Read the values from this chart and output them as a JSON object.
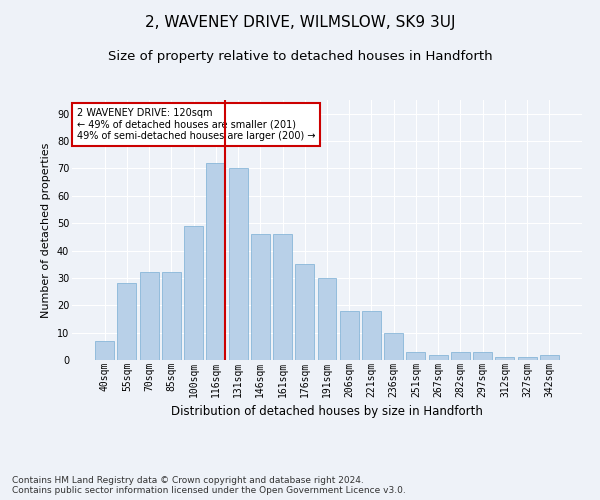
{
  "title": "2, WAVENEY DRIVE, WILMSLOW, SK9 3UJ",
  "subtitle": "Size of property relative to detached houses in Handforth",
  "xlabel": "Distribution of detached houses by size in Handforth",
  "ylabel": "Number of detached properties",
  "categories": [
    "40sqm",
    "55sqm",
    "70sqm",
    "85sqm",
    "100sqm",
    "116sqm",
    "131sqm",
    "146sqm",
    "161sqm",
    "176sqm",
    "191sqm",
    "206sqm",
    "221sqm",
    "236sqm",
    "251sqm",
    "267sqm",
    "282sqm",
    "297sqm",
    "312sqm",
    "327sqm",
    "342sqm"
  ],
  "values": [
    7,
    28,
    32,
    32,
    49,
    72,
    70,
    46,
    46,
    35,
    30,
    18,
    18,
    10,
    3,
    2,
    3,
    3,
    1,
    1,
    2
  ],
  "bar_color": "#b8d0e8",
  "bar_edgecolor": "#7aaed4",
  "vline_color": "#cc0000",
  "annotation_text": "2 WAVENEY DRIVE: 120sqm\n← 49% of detached houses are smaller (201)\n49% of semi-detached houses are larger (200) →",
  "annotation_boxcolor": "white",
  "annotation_edgecolor": "#cc0000",
  "ylim": [
    0,
    95
  ],
  "yticks": [
    0,
    10,
    20,
    30,
    40,
    50,
    60,
    70,
    80,
    90
  ],
  "footer": "Contains HM Land Registry data © Crown copyright and database right 2024.\nContains public sector information licensed under the Open Government Licence v3.0.",
  "bg_color": "#eef2f8",
  "grid_color": "white",
  "title_fontsize": 11,
  "subtitle_fontsize": 9.5,
  "label_fontsize": 8,
  "tick_fontsize": 7,
  "footer_fontsize": 6.5
}
